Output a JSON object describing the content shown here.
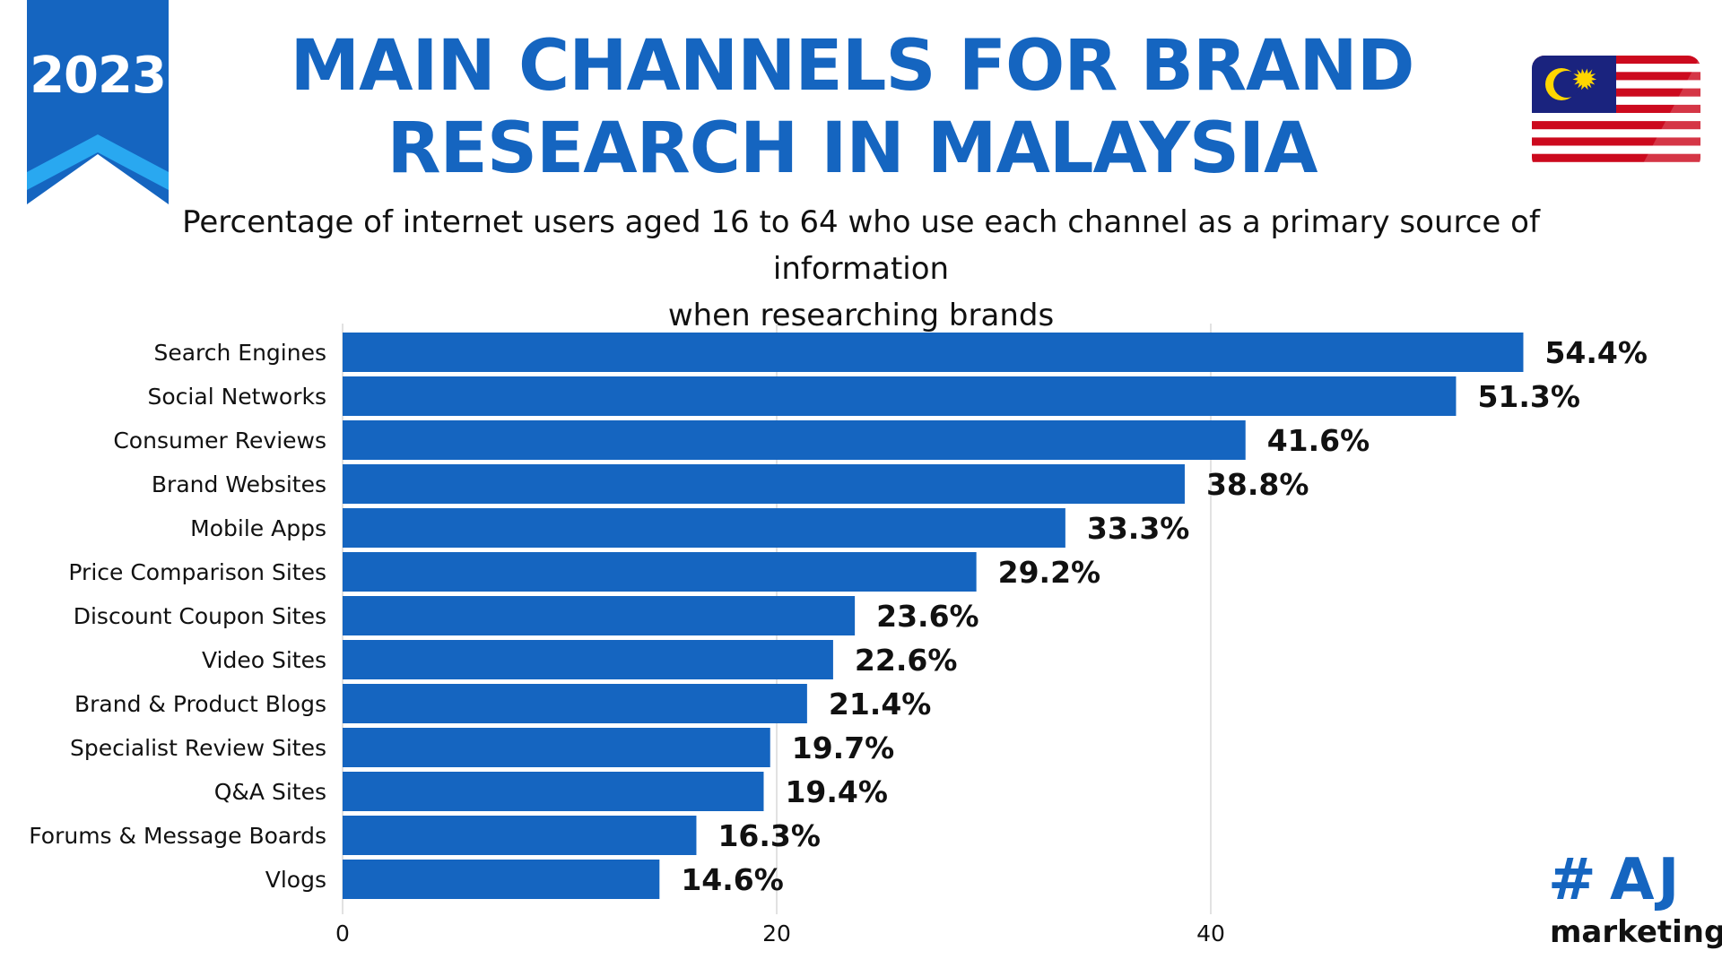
{
  "badge": {
    "year": "2023"
  },
  "header": {
    "title_line1": "MAIN CHANNELS FOR BRAND",
    "title_line2": "RESEARCH IN MALAYSIA",
    "subtitle_line1": "Percentage of internet users aged 16 to 64 who use each channel as a primary source of information",
    "subtitle_line2": "when researching brands"
  },
  "logo": {
    "hash": "#",
    "brand": "AJ",
    "word": "marketing"
  },
  "colors": {
    "accent": "#1565c0",
    "ribbon_light": "#29a8f0",
    "flag_red": "#cc0a1e",
    "flag_blue": "#1a237e",
    "flag_yellow": "#ffd600"
  },
  "chart_data": {
    "type": "bar",
    "orientation": "horizontal",
    "title": "MAIN CHANNELS FOR BRAND RESEARCH IN MALAYSIA",
    "categories": [
      "Search Engines",
      "Social Networks",
      "Consumer Reviews",
      "Brand Websites",
      "Mobile Apps",
      "Price Comparison Sites",
      "Discount Coupon Sites",
      "Video Sites",
      "Brand & Product Blogs",
      "Specialist Review Sites",
      "Q&A Sites",
      "Forums & Message Boards",
      "Vlogs"
    ],
    "values": [
      54.4,
      51.3,
      41.6,
      38.8,
      33.3,
      29.2,
      23.6,
      22.6,
      21.4,
      19.7,
      19.4,
      16.3,
      14.6
    ],
    "value_labels": [
      "54.4%",
      "51.3%",
      "41.6%",
      "38.8%",
      "33.3%",
      "29.2%",
      "23.6%",
      "22.6%",
      "21.4%",
      "19.7%",
      "19.4%",
      "16.3%",
      "14.6%"
    ],
    "xticks": [
      0,
      20,
      40
    ],
    "xtick_labels": [
      "0",
      "20",
      "40"
    ],
    "xlim": [
      0,
      60
    ],
    "grid": true,
    "xlabel": "",
    "ylabel": ""
  }
}
